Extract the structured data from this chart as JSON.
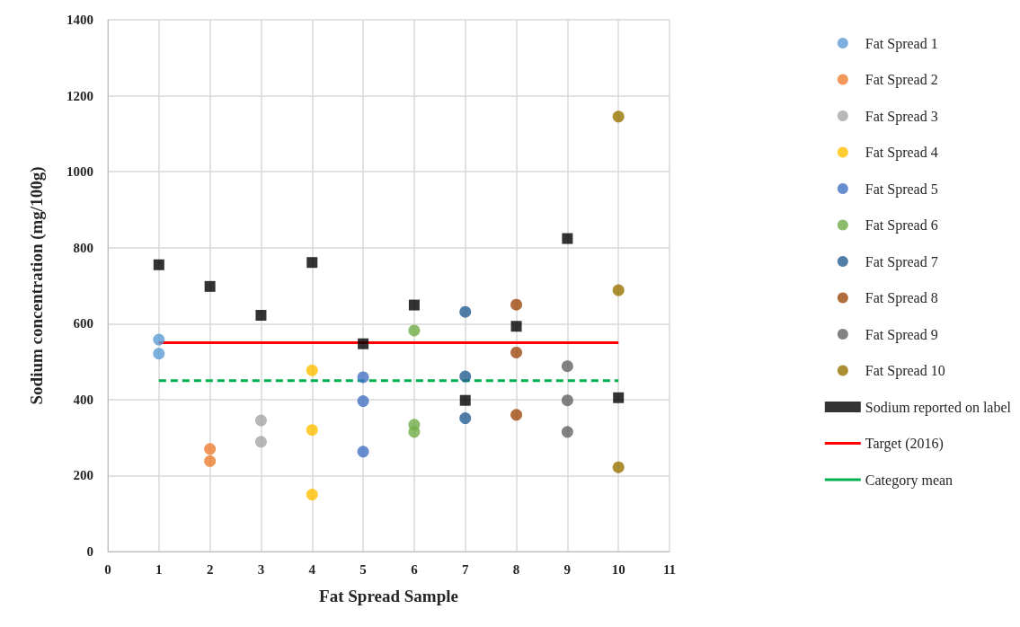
{
  "chart_data": {
    "type": "scatter",
    "xlabel": "Fat Spread Sample",
    "ylabel": "Sodium concentration (mg/100g)",
    "xlim": [
      0,
      11
    ],
    "xticks": [
      0,
      1,
      2,
      3,
      4,
      5,
      6,
      7,
      8,
      9,
      10,
      11
    ],
    "ylim": [
      0,
      1400
    ],
    "yticks": [
      0,
      200,
      400,
      600,
      800,
      1000,
      1200,
      1400
    ],
    "grid": true,
    "legend": "right",
    "marker": "circle",
    "series": [
      {
        "name": "Fat Spread 1",
        "color": "#5b9bd5",
        "x": [
          1,
          1
        ],
        "values": [
          558,
          521
        ]
      },
      {
        "name": "Fat Spread 2",
        "color": "#ed7d31",
        "x": [
          2,
          2
        ],
        "values": [
          270,
          238
        ]
      },
      {
        "name": "Fat Spread 3",
        "color": "#a5a5a5",
        "x": [
          3,
          3
        ],
        "values": [
          345,
          289
        ]
      },
      {
        "name": "Fat Spread 4",
        "color": "#ffc000",
        "x": [
          4,
          4,
          4
        ],
        "values": [
          477,
          320,
          150
        ]
      },
      {
        "name": "Fat Spread 5",
        "color": "#4472c4",
        "x": [
          5,
          5,
          5
        ],
        "values": [
          459,
          396,
          263
        ]
      },
      {
        "name": "Fat Spread 6",
        "color": "#70ad47",
        "x": [
          6,
          6,
          6
        ],
        "values": [
          582,
          334,
          315
        ]
      },
      {
        "name": "Fat Spread 7",
        "color": "#255e91",
        "x": [
          7,
          7,
          7
        ],
        "values": [
          631,
          461,
          351
        ]
      },
      {
        "name": "Fat Spread 8",
        "color": "#9e480e",
        "x": [
          8,
          8,
          8
        ],
        "values": [
          650,
          524,
          360
        ]
      },
      {
        "name": "Fat Spread 9",
        "color": "#636363",
        "x": [
          9,
          9,
          9
        ],
        "values": [
          488,
          398,
          315
        ]
      },
      {
        "name": "Fat Spread 10",
        "color": "#997300",
        "x": [
          10,
          10,
          10
        ],
        "values": [
          1145,
          688,
          222
        ]
      },
      {
        "name": "Sodium reported on label",
        "color": "#000000",
        "marker": "square",
        "x": [
          1,
          2,
          3,
          4,
          5,
          6,
          7,
          8,
          9,
          10
        ],
        "values": [
          755,
          698,
          622,
          761,
          547,
          649,
          398,
          593,
          824,
          405
        ]
      },
      {
        "name": "Target (2016)",
        "type": "line",
        "color": "#ff0000",
        "marker": "none",
        "line_style": "solid",
        "x": [
          1,
          10
        ],
        "values": [
          550,
          550
        ]
      },
      {
        "name": "Category mean",
        "type": "line",
        "color": "#00b050",
        "marker": "none",
        "line_style": "dashed",
        "x": [
          1,
          10
        ],
        "values": [
          450,
          450
        ]
      }
    ]
  }
}
